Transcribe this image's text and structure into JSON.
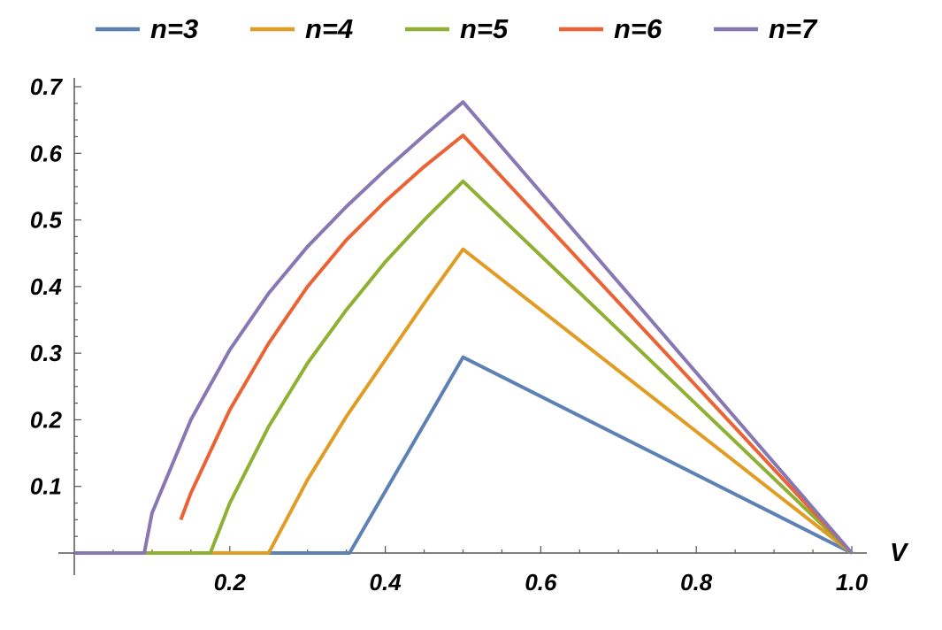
{
  "chart_data": {
    "type": "line",
    "title": "",
    "xlabel": "V",
    "ylabel": "",
    "xlim": [
      0,
      1.0
    ],
    "ylim": [
      0,
      0.7
    ],
    "x_ticks": [
      "0.2",
      "0.4",
      "0.6",
      "0.8",
      "1.0"
    ],
    "y_ticks": [
      "0.1",
      "0.2",
      "0.3",
      "0.4",
      "0.5",
      "0.6",
      "0.7"
    ],
    "x_tick_values": [
      0.2,
      0.4,
      0.6,
      0.8,
      1.0
    ],
    "y_tick_values": [
      0.1,
      0.2,
      0.3,
      0.4,
      0.5,
      0.6,
      0.7
    ],
    "grid": false,
    "legend_position": "top",
    "series": [
      {
        "name": "n=3",
        "color": "#5E81B5",
        "points": [
          [
            0.0,
            0.0
          ],
          [
            0.354,
            0.0
          ],
          [
            0.5,
            0.294
          ],
          [
            1.0,
            0.0
          ]
        ]
      },
      {
        "name": "n=4",
        "color": "#E19C24",
        "points": [
          [
            0.0,
            0.0
          ],
          [
            0.25,
            0.0
          ],
          [
            0.3,
            0.11
          ],
          [
            0.35,
            0.205
          ],
          [
            0.4,
            0.29
          ],
          [
            0.45,
            0.375
          ],
          [
            0.5,
            0.456
          ],
          [
            1.0,
            0.0
          ]
        ]
      },
      {
        "name": "n=5",
        "color": "#8FB032",
        "points": [
          [
            0.0,
            0.0
          ],
          [
            0.175,
            0.0
          ],
          [
            0.2,
            0.075
          ],
          [
            0.25,
            0.19
          ],
          [
            0.3,
            0.285
          ],
          [
            0.35,
            0.365
          ],
          [
            0.4,
            0.437
          ],
          [
            0.45,
            0.5
          ],
          [
            0.5,
            0.558
          ],
          [
            1.0,
            0.0
          ]
        ]
      },
      {
        "name": "n=6",
        "color": "#EB6235",
        "points": [
          [
            0.137,
            0.05
          ],
          [
            0.15,
            0.09
          ],
          [
            0.2,
            0.215
          ],
          [
            0.25,
            0.315
          ],
          [
            0.3,
            0.4
          ],
          [
            0.35,
            0.47
          ],
          [
            0.4,
            0.528
          ],
          [
            0.45,
            0.58
          ],
          [
            0.5,
            0.627
          ],
          [
            1.0,
            0.0
          ]
        ]
      },
      {
        "name": "n=7",
        "color": "#8778B3",
        "points": [
          [
            0.0,
            0.0
          ],
          [
            0.09,
            0.0
          ],
          [
            0.1,
            0.06
          ],
          [
            0.15,
            0.2
          ],
          [
            0.2,
            0.305
          ],
          [
            0.25,
            0.39
          ],
          [
            0.3,
            0.46
          ],
          [
            0.35,
            0.52
          ],
          [
            0.4,
            0.575
          ],
          [
            0.45,
            0.627
          ],
          [
            0.5,
            0.677
          ],
          [
            1.0,
            0.0
          ]
        ]
      }
    ]
  }
}
